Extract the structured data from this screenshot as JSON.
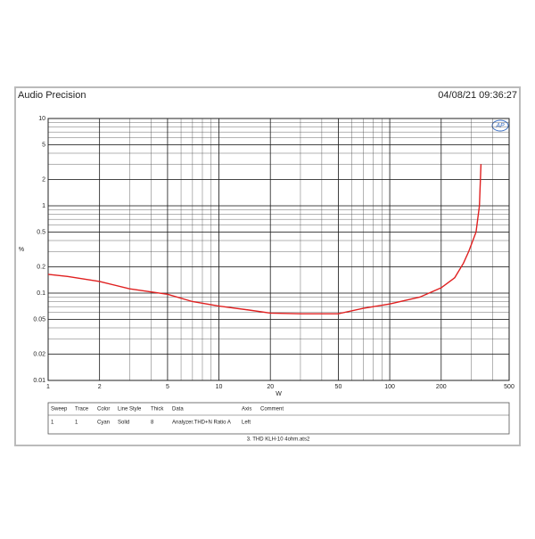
{
  "header": {
    "title": "Audio Precision",
    "timestamp": "04/08/21 09:36:27",
    "logo": "AP"
  },
  "chart_data": {
    "type": "line",
    "xlabel": "W",
    "ylabel": "%",
    "xscale": "log",
    "yscale": "log",
    "grid": true,
    "minor_grid": true,
    "xlim": [
      1,
      500
    ],
    "ylim": [
      0.01,
      10
    ],
    "xticks": [
      1,
      2,
      5,
      10,
      20,
      50,
      100,
      200,
      500
    ],
    "yticks": [
      0.01,
      0.02,
      0.05,
      0.1,
      0.2,
      0.5,
      1,
      2,
      5,
      10
    ],
    "series": [
      {
        "color": "#e02020",
        "x": [
          1,
          1.3,
          2,
          3,
          5,
          7,
          10,
          15,
          20,
          30,
          50,
          70,
          100,
          150,
          200,
          240,
          270,
          290,
          320,
          335,
          342
        ],
        "values": [
          0.164,
          0.155,
          0.136,
          0.112,
          0.097,
          0.08,
          0.071,
          0.064,
          0.059,
          0.058,
          0.058,
          0.067,
          0.075,
          0.09,
          0.115,
          0.15,
          0.22,
          0.3,
          0.5,
          1,
          3
        ]
      }
    ]
  },
  "table": {
    "columns": [
      "Sweep",
      "Trace",
      "Color",
      "Line Style",
      "Thick",
      "Data",
      "Axis",
      "Comment"
    ],
    "rows": [
      [
        "1",
        "1",
        "Cyan",
        "Solid",
        "8",
        "Analyzer.THD+N Ratio A",
        "Left",
        ""
      ]
    ]
  },
  "caption": "3. THD KLH-10 4ohm.ats2"
}
